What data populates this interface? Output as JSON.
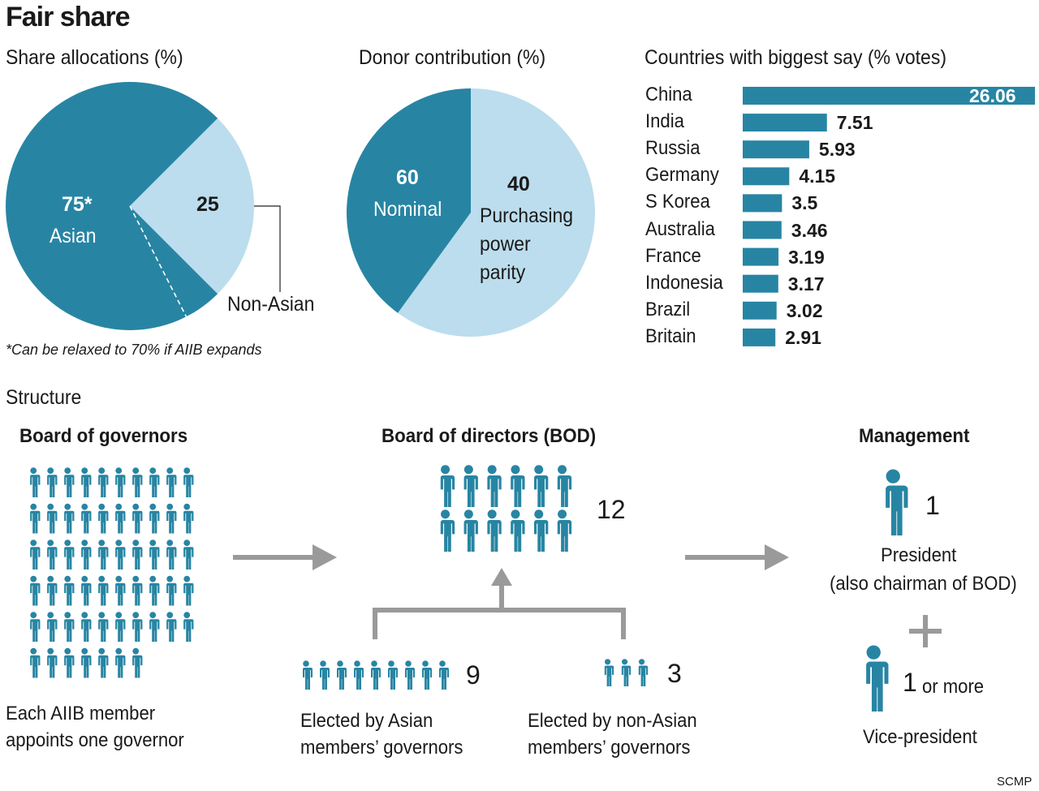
{
  "title": "Fair share",
  "colors": {
    "dark": "#2785a3",
    "light": "#bcdded",
    "arrow": "#9a9a9a"
  },
  "chart_data": [
    {
      "type": "pie",
      "title": "Share allocations (%)",
      "slices": [
        {
          "label": "Asian",
          "value": 75,
          "value_label": "75*"
        },
        {
          "label": "Non-Asian",
          "value": 25,
          "value_label": "25"
        }
      ],
      "annotation": "Can be relaxed to 70% if AIIB expands",
      "dashed_boundary": 70,
      "footnote": "*Can be relaxed to 70% if AIIB expands"
    },
    {
      "type": "pie",
      "title": "Donor contribution (%)",
      "slices": [
        {
          "label": "Nominal",
          "value": 60
        },
        {
          "label": "Purchasing power parity",
          "value": 40
        }
      ]
    },
    {
      "type": "bar",
      "orientation": "horizontal",
      "title": "Countries with biggest say (% votes)",
      "categories": [
        "China",
        "India",
        "Russia",
        "Germany",
        "S Korea",
        "Australia",
        "France",
        "Indonesia",
        "Brazil",
        "Britain"
      ],
      "values": [
        26.06,
        7.51,
        5.93,
        4.15,
        3.5,
        3.46,
        3.19,
        3.17,
        3.02,
        2.91
      ],
      "value_labels": [
        "26.06",
        "7.51",
        "5.93",
        "4.15",
        "3.5",
        "3.46",
        "3.19",
        "3.17",
        "3.02",
        "2.91"
      ]
    }
  ],
  "pie1": {
    "title": "Share allocations (%)",
    "asian_value": "75*",
    "asian_label": "Asian",
    "non_value": "25",
    "non_label": "Non-Asian",
    "footnote": "*Can be relaxed to 70% if AIIB expands"
  },
  "pie2": {
    "title": "Donor contribution (%)",
    "nom_value": "60",
    "nom_label": "Nominal",
    "ppp_value": "40",
    "ppp_l1": "Purchasing",
    "ppp_l2": "power",
    "ppp_l3": "parity"
  },
  "structure": {
    "label": "Structure",
    "governors": {
      "title": "Board of governors",
      "count": 57,
      "desc1": "Each AIIB member",
      "desc2": "appoints one governor"
    },
    "directors": {
      "title": "Board of directors (BOD)",
      "count": 12,
      "count_label": "12",
      "asian": {
        "count": 9,
        "count_label": "9",
        "desc1": "Elected by Asian",
        "desc2": "members’ governors"
      },
      "non_asian": {
        "count": 3,
        "count_label": "3",
        "desc1": "Elected by non-Asian",
        "desc2": "members’ governors"
      }
    },
    "management": {
      "title": "Management",
      "president_count": "1",
      "president": "President",
      "president_note": "(also chairman of BOD)",
      "plus": "+",
      "vp_count": "1",
      "vp_more": "or more",
      "vp": "Vice-president"
    }
  },
  "source": "SCMP"
}
